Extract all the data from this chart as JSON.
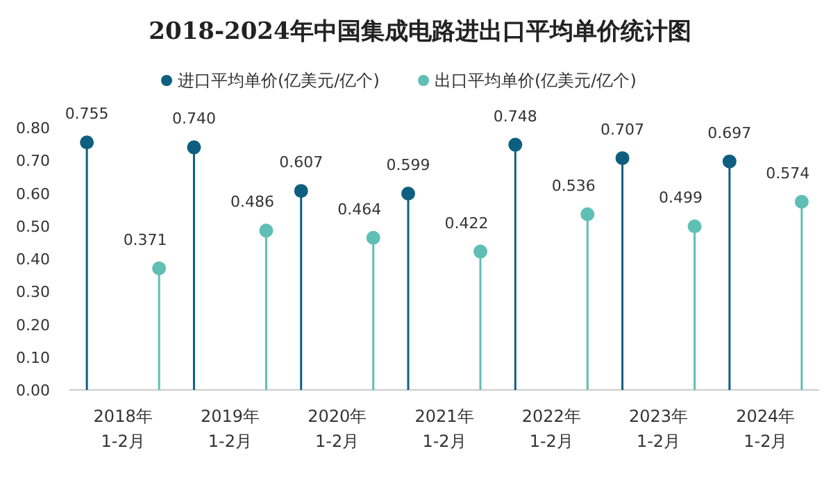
{
  "chart_data": {
    "type": "lollipop",
    "title": "2018-2024年中国集成电路进出口平均单价统计图",
    "categories": [
      "2018年\n1-2月",
      "2019年\n1-2月",
      "2020年\n1-2月",
      "2021年\n1-2月",
      "2022年\n1-2月",
      "2023年\n1-2月",
      "2024年\n1-2月"
    ],
    "series": [
      {
        "name": "进口平均单价(亿美元/亿个)",
        "color": "#0e5f7f",
        "values": [
          0.755,
          0.74,
          0.607,
          0.599,
          0.748,
          0.707,
          0.697
        ],
        "value_labels": [
          "0.755",
          "0.740",
          "0.607",
          "0.599",
          "0.748",
          "0.707",
          "0.697"
        ]
      },
      {
        "name": "出口平均单价(亿美元/亿个)",
        "color": "#5fbfb4",
        "values": [
          0.371,
          0.486,
          0.464,
          0.422,
          0.536,
          0.499,
          0.574
        ],
        "value_labels": [
          "0.371",
          "0.486",
          "0.464",
          "0.422",
          "0.536",
          "0.499",
          "0.574"
        ]
      }
    ],
    "ylim": [
      0,
      0.8
    ],
    "yticks": [
      {
        "value": 0,
        "label": "0.00"
      },
      {
        "value": 0.1,
        "label": "0.10"
      },
      {
        "value": 0.2,
        "label": "0.20"
      },
      {
        "value": 0.3,
        "label": "0.30"
      },
      {
        "value": 0.4,
        "label": "0.40"
      },
      {
        "value": 0.5,
        "label": "0.50"
      },
      {
        "value": 0.6,
        "label": "0.60"
      },
      {
        "value": 0.7,
        "label": "0.70"
      },
      {
        "value": 0.8,
        "label": "0.80"
      }
    ],
    "legend": "top",
    "marker": "circle",
    "grid": false
  }
}
